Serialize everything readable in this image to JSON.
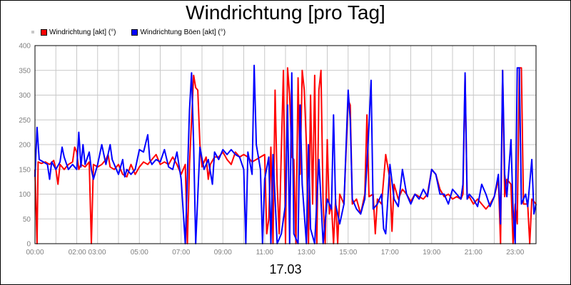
{
  "chart_data": {
    "type": "line",
    "title": "Windrichtung [pro Tag]",
    "date_label": "17.03",
    "ylim": [
      0,
      400
    ],
    "yticks": [
      0,
      50,
      100,
      150,
      200,
      250,
      300,
      350,
      400
    ],
    "xlim_hours": [
      0,
      24
    ],
    "xtick_labels": [
      {
        "t": 0,
        "label": "00:00"
      },
      {
        "t": 2.5,
        "label": "02:00 03:00"
      },
      {
        "t": 5,
        "label": "05:00"
      },
      {
        "t": 7,
        "label": "07:00"
      },
      {
        "t": 9,
        "label": "09:00"
      },
      {
        "t": 11,
        "label": "11:00"
      },
      {
        "t": 13,
        "label": "13:00"
      },
      {
        "t": 15,
        "label": "15:00"
      },
      {
        "t": 17,
        "label": "17:00"
      },
      {
        "t": 19,
        "label": "19:00"
      },
      {
        "t": 21,
        "label": "21:00"
      },
      {
        "t": 23,
        "label": "23:00"
      }
    ],
    "grid": true,
    "legend": {
      "placement": "top-left"
    },
    "series": [
      {
        "name": "Windrichtung [akt] (°)",
        "color": "#ff0000",
        "points": [
          [
            0,
            150
          ],
          [
            0.1,
            0
          ],
          [
            0.15,
            165
          ],
          [
            0.3,
            162
          ],
          [
            0.5,
            165
          ],
          [
            0.7,
            160
          ],
          [
            0.9,
            168
          ],
          [
            1.0,
            150
          ],
          [
            1.1,
            120
          ],
          [
            1.2,
            160
          ],
          [
            1.4,
            150
          ],
          [
            1.6,
            160
          ],
          [
            1.8,
            165
          ],
          [
            1.9,
            195
          ],
          [
            2.0,
            185
          ],
          [
            2.1,
            150
          ],
          [
            2.2,
            160
          ],
          [
            2.4,
            155
          ],
          [
            2.6,
            165
          ],
          [
            2.7,
            0
          ],
          [
            2.8,
            160
          ],
          [
            3.0,
            155
          ],
          [
            3.2,
            160
          ],
          [
            3.4,
            170
          ],
          [
            3.5,
            180
          ],
          [
            3.6,
            155
          ],
          [
            3.8,
            150
          ],
          [
            4.0,
            160
          ],
          [
            4.2,
            140
          ],
          [
            4.4,
            135
          ],
          [
            4.6,
            160
          ],
          [
            4.8,
            140
          ],
          [
            5.0,
            155
          ],
          [
            5.2,
            165
          ],
          [
            5.4,
            160
          ],
          [
            5.6,
            170
          ],
          [
            5.8,
            180
          ],
          [
            6.0,
            160
          ],
          [
            6.2,
            165
          ],
          [
            6.4,
            160
          ],
          [
            6.6,
            175
          ],
          [
            6.8,
            160
          ],
          [
            7.0,
            140
          ],
          [
            7.2,
            160
          ],
          [
            7.3,
            0
          ],
          [
            7.4,
            160
          ],
          [
            7.6,
            340
          ],
          [
            7.7,
            315
          ],
          [
            7.8,
            310
          ],
          [
            7.9,
            200
          ],
          [
            8.0,
            155
          ],
          [
            8.2,
            175
          ],
          [
            8.3,
            130
          ],
          [
            8.4,
            160
          ],
          [
            8.6,
            175
          ],
          [
            8.8,
            175
          ],
          [
            9.0,
            185
          ],
          [
            9.2,
            170
          ],
          [
            9.4,
            160
          ],
          [
            9.6,
            185
          ],
          [
            9.8,
            175
          ],
          [
            10.0,
            180
          ],
          [
            10.2,
            175
          ],
          [
            10.4,
            165
          ],
          [
            10.6,
            170
          ],
          [
            10.8,
            175
          ],
          [
            11.0,
            180
          ],
          [
            11.1,
            20
          ],
          [
            11.2,
            50
          ],
          [
            11.3,
            195
          ],
          [
            11.4,
            0
          ],
          [
            11.5,
            310
          ],
          [
            11.6,
            120
          ],
          [
            11.7,
            20
          ],
          [
            11.8,
            190
          ],
          [
            11.9,
            350
          ],
          [
            12.0,
            0
          ],
          [
            12.1,
            355
          ],
          [
            12.2,
            300
          ],
          [
            12.3,
            175
          ],
          [
            12.4,
            170
          ],
          [
            12.5,
            0
          ],
          [
            12.6,
            335
          ],
          [
            12.7,
            140
          ],
          [
            12.8,
            350
          ],
          [
            12.9,
            310
          ],
          [
            13.0,
            200
          ],
          [
            13.1,
            0
          ],
          [
            13.2,
            300
          ],
          [
            13.3,
            80
          ],
          [
            13.4,
            340
          ],
          [
            13.5,
            0
          ],
          [
            13.6,
            310
          ],
          [
            13.7,
            350
          ],
          [
            13.8,
            80
          ],
          [
            13.9,
            0
          ],
          [
            14.0,
            210
          ],
          [
            14.1,
            60
          ],
          [
            14.2,
            80
          ],
          [
            14.3,
            0
          ],
          [
            14.4,
            90
          ],
          [
            14.5,
            0
          ],
          [
            14.6,
            100
          ],
          [
            14.8,
            80
          ],
          [
            15.0,
            290
          ],
          [
            15.1,
            280
          ],
          [
            15.2,
            80
          ],
          [
            15.4,
            90
          ],
          [
            15.6,
            60
          ],
          [
            15.8,
            100
          ],
          [
            15.9,
            260
          ],
          [
            16.0,
            95
          ],
          [
            16.2,
            100
          ],
          [
            16.3,
            20
          ],
          [
            16.4,
            90
          ],
          [
            16.6,
            80
          ],
          [
            16.8,
            180
          ],
          [
            17.0,
            130
          ],
          [
            17.1,
            25
          ],
          [
            17.2,
            120
          ],
          [
            17.4,
            90
          ],
          [
            17.6,
            110
          ],
          [
            17.8,
            100
          ],
          [
            18.0,
            85
          ],
          [
            18.2,
            100
          ],
          [
            18.4,
            95
          ],
          [
            18.6,
            90
          ],
          [
            18.8,
            100
          ],
          [
            19.0,
            150
          ],
          [
            19.2,
            140
          ],
          [
            19.4,
            110
          ],
          [
            19.6,
            95
          ],
          [
            19.8,
            100
          ],
          [
            20.0,
            90
          ],
          [
            20.2,
            95
          ],
          [
            20.4,
            90
          ],
          [
            20.5,
            100
          ],
          [
            20.6,
            340
          ],
          [
            20.7,
            90
          ],
          [
            20.8,
            95
          ],
          [
            21.0,
            80
          ],
          [
            21.2,
            90
          ],
          [
            21.4,
            80
          ],
          [
            21.6,
            70
          ],
          [
            21.8,
            80
          ],
          [
            22.0,
            95
          ],
          [
            22.2,
            130
          ],
          [
            22.3,
            0
          ],
          [
            22.4,
            350
          ],
          [
            22.5,
            95
          ],
          [
            22.6,
            130
          ],
          [
            22.8,
            120
          ],
          [
            22.9,
            0
          ],
          [
            23.0,
            80
          ],
          [
            23.1,
            40
          ],
          [
            23.2,
            355
          ],
          [
            23.3,
            355
          ],
          [
            23.4,
            80
          ],
          [
            23.6,
            80
          ],
          [
            23.7,
            0
          ],
          [
            23.8,
            90
          ],
          [
            24.0,
            80
          ]
        ]
      },
      {
        "name": "Windrichtung Böen [akt] (°)",
        "color": "#0000ff",
        "points": [
          [
            0,
            135
          ],
          [
            0.1,
            235
          ],
          [
            0.2,
            170
          ],
          [
            0.4,
            165
          ],
          [
            0.6,
            160
          ],
          [
            0.7,
            130
          ],
          [
            0.8,
            165
          ],
          [
            1.0,
            150
          ],
          [
            1.2,
            165
          ],
          [
            1.3,
            195
          ],
          [
            1.4,
            175
          ],
          [
            1.6,
            150
          ],
          [
            1.8,
            160
          ],
          [
            2.0,
            150
          ],
          [
            2.1,
            225
          ],
          [
            2.2,
            155
          ],
          [
            2.3,
            200
          ],
          [
            2.4,
            160
          ],
          [
            2.6,
            185
          ],
          [
            2.7,
            150
          ],
          [
            2.8,
            130
          ],
          [
            3.0,
            160
          ],
          [
            3.2,
            200
          ],
          [
            3.4,
            160
          ],
          [
            3.6,
            200
          ],
          [
            3.7,
            170
          ],
          [
            3.8,
            160
          ],
          [
            4.0,
            140
          ],
          [
            4.2,
            170
          ],
          [
            4.3,
            135
          ],
          [
            4.4,
            150
          ],
          [
            4.6,
            140
          ],
          [
            4.8,
            150
          ],
          [
            5.0,
            190
          ],
          [
            5.2,
            185
          ],
          [
            5.4,
            220
          ],
          [
            5.5,
            170
          ],
          [
            5.6,
            160
          ],
          [
            5.8,
            170
          ],
          [
            6.0,
            165
          ],
          [
            6.2,
            190
          ],
          [
            6.4,
            155
          ],
          [
            6.6,
            150
          ],
          [
            6.8,
            185
          ],
          [
            7.0,
            130
          ],
          [
            7.2,
            0
          ],
          [
            7.4,
            270
          ],
          [
            7.5,
            345
          ],
          [
            7.6,
            200
          ],
          [
            7.7,
            0
          ],
          [
            7.9,
            195
          ],
          [
            8.1,
            150
          ],
          [
            8.3,
            170
          ],
          [
            8.5,
            120
          ],
          [
            8.6,
            185
          ],
          [
            8.8,
            170
          ],
          [
            9.0,
            190
          ],
          [
            9.2,
            180
          ],
          [
            9.4,
            190
          ],
          [
            9.6,
            180
          ],
          [
            9.8,
            175
          ],
          [
            10.0,
            150
          ],
          [
            10.1,
            0
          ],
          [
            10.2,
            185
          ],
          [
            10.4,
            140
          ],
          [
            10.5,
            360
          ],
          [
            10.6,
            200
          ],
          [
            10.8,
            150
          ],
          [
            10.9,
            0
          ],
          [
            11.0,
            130
          ],
          [
            11.2,
            175
          ],
          [
            11.3,
            0
          ],
          [
            11.4,
            180
          ],
          [
            11.6,
            0
          ],
          [
            11.8,
            20
          ],
          [
            12.0,
            80
          ],
          [
            12.1,
            280
          ],
          [
            12.2,
            0
          ],
          [
            12.3,
            345
          ],
          [
            12.4,
            20
          ],
          [
            12.6,
            0
          ],
          [
            12.7,
            280
          ],
          [
            12.8,
            120
          ],
          [
            13.0,
            0
          ],
          [
            13.1,
            200
          ],
          [
            13.2,
            30
          ],
          [
            13.4,
            0
          ],
          [
            13.6,
            170
          ],
          [
            13.8,
            0
          ],
          [
            14.0,
            90
          ],
          [
            14.2,
            70
          ],
          [
            14.3,
            260
          ],
          [
            14.4,
            80
          ],
          [
            14.6,
            40
          ],
          [
            14.8,
            80
          ],
          [
            15.0,
            310
          ],
          [
            15.1,
            250
          ],
          [
            15.2,
            90
          ],
          [
            15.4,
            70
          ],
          [
            15.6,
            60
          ],
          [
            15.8,
            90
          ],
          [
            15.9,
            160
          ],
          [
            16.0,
            240
          ],
          [
            16.1,
            330
          ],
          [
            16.2,
            70
          ],
          [
            16.4,
            80
          ],
          [
            16.6,
            100
          ],
          [
            16.7,
            30
          ],
          [
            16.8,
            20
          ],
          [
            17.0,
            160
          ],
          [
            17.2,
            90
          ],
          [
            17.4,
            75
          ],
          [
            17.6,
            150
          ],
          [
            17.8,
            100
          ],
          [
            18.0,
            80
          ],
          [
            18.2,
            100
          ],
          [
            18.4,
            90
          ],
          [
            18.6,
            110
          ],
          [
            18.8,
            95
          ],
          [
            19.0,
            150
          ],
          [
            19.2,
            140
          ],
          [
            19.4,
            100
          ],
          [
            19.6,
            100
          ],
          [
            19.8,
            80
          ],
          [
            20.0,
            110
          ],
          [
            20.2,
            100
          ],
          [
            20.4,
            90
          ],
          [
            20.5,
            120
          ],
          [
            20.6,
            345
          ],
          [
            20.7,
            90
          ],
          [
            20.8,
            100
          ],
          [
            21.0,
            90
          ],
          [
            21.2,
            75
          ],
          [
            21.4,
            120
          ],
          [
            21.6,
            100
          ],
          [
            21.8,
            75
          ],
          [
            22.0,
            95
          ],
          [
            22.2,
            140
          ],
          [
            22.3,
            40
          ],
          [
            22.4,
            350
          ],
          [
            22.5,
            140
          ],
          [
            22.6,
            95
          ],
          [
            22.8,
            210
          ],
          [
            22.9,
            70
          ],
          [
            23.0,
            0
          ],
          [
            23.1,
            355
          ],
          [
            23.2,
            355
          ],
          [
            23.3,
            80
          ],
          [
            23.5,
            100
          ],
          [
            23.6,
            75
          ],
          [
            23.8,
            170
          ],
          [
            23.9,
            60
          ],
          [
            24.0,
            80
          ]
        ]
      }
    ]
  }
}
